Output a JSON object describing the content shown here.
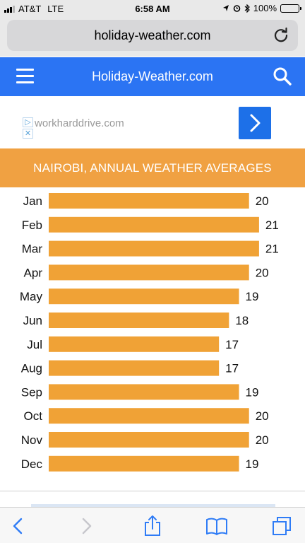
{
  "status_bar": {
    "carrier": "AT&T",
    "network": "LTE",
    "time": "6:58 AM",
    "battery": "100%"
  },
  "address_bar": {
    "url": "holiday-weather.com"
  },
  "site": {
    "title": "Holiday-Weather.com",
    "brand_color": "#2b74f3"
  },
  "ad": {
    "domain": "workharddrive.com"
  },
  "banner": {
    "title": "NAIROBI, ANNUAL WEATHER AVERAGES",
    "color": "#f0a142"
  },
  "chart_data": {
    "type": "bar",
    "orientation": "horizontal",
    "categories": [
      "Jan",
      "Feb",
      "Mar",
      "Apr",
      "May",
      "Jun",
      "Jul",
      "Aug",
      "Sep",
      "Oct",
      "Nov",
      "Dec"
    ],
    "values": [
      20,
      21,
      21,
      20,
      19,
      18,
      17,
      17,
      19,
      20,
      20,
      19
    ],
    "title": "",
    "xlabel": "",
    "ylabel": "",
    "xlim": [
      0,
      21.5
    ],
    "grid": false,
    "bar_color": "#f0a236"
  },
  "toolbar": {
    "icons": [
      "back-icon",
      "forward-icon",
      "share-icon",
      "bookmarks-icon",
      "tabs-icon"
    ]
  }
}
